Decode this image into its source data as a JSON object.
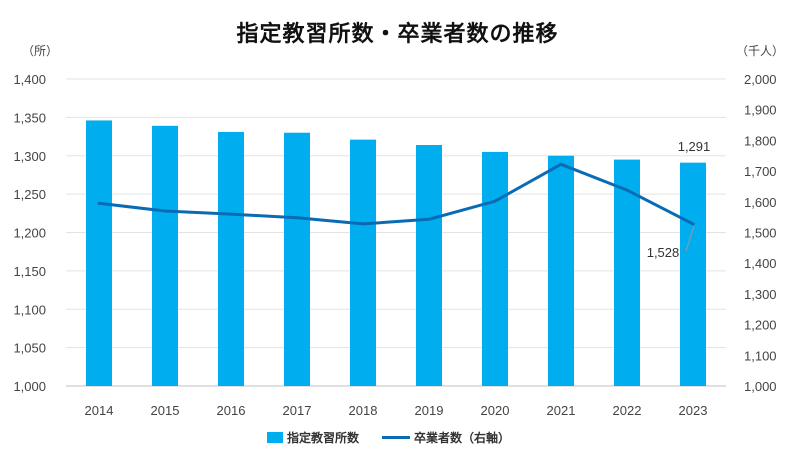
{
  "chart_data": {
    "type": "bar",
    "title": "指定教習所数・卒業者数の推移",
    "categories": [
      "2014",
      "2015",
      "2016",
      "2017",
      "2018",
      "2019",
      "2020",
      "2021",
      "2022",
      "2023"
    ],
    "series": [
      {
        "name": "指定教習所数",
        "type": "bar",
        "axis": "left",
        "color": "#00aeef",
        "values": [
          1346,
          1339,
          1331,
          1330,
          1321,
          1314,
          1305,
          1300,
          1295,
          1291
        ]
      },
      {
        "name": "卒業者数（右軸）",
        "type": "line",
        "axis": "right",
        "color": "#0a6bb5",
        "values": [
          1595,
          1570,
          1560,
          1548,
          1528,
          1543,
          1602,
          1722,
          1638,
          1528
        ]
      }
    ],
    "y_left": {
      "unit": "（所）",
      "range": [
        1000,
        1400
      ],
      "ticks": [
        "1,000",
        "1,050",
        "1,100",
        "1,150",
        "1,200",
        "1,250",
        "1,300",
        "1,350",
        "1,400"
      ]
    },
    "y_right": {
      "unit": "（千人）",
      "range": [
        1000,
        2000
      ],
      "ticks": [
        "1,000",
        "1,100",
        "1,200",
        "1,300",
        "1,400",
        "1,500",
        "1,600",
        "1,700",
        "1,800",
        "1,900",
        "2,000"
      ]
    },
    "data_labels": {
      "bar_last": "1,291",
      "line_last": "1,528"
    },
    "grid": true,
    "legend": "bottom",
    "legend_entries": [
      "指定教習所数",
      "卒業者数（右軸）"
    ]
  }
}
